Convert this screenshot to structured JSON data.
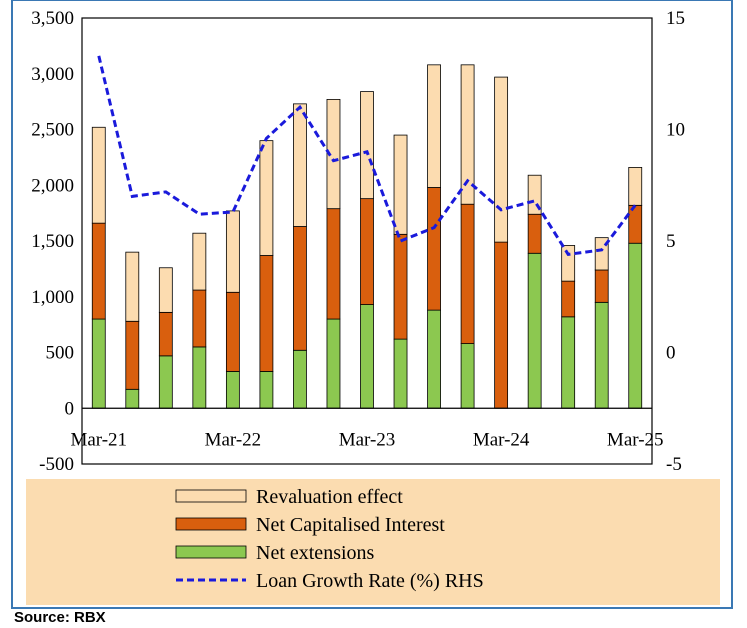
{
  "chart_data": {
    "type": "bar",
    "stacked": true,
    "title": "",
    "xlabel": "",
    "ylabel": "",
    "x_tick_labels": [
      "Mar-21",
      "Mar-22",
      "Mar-23",
      "Mar-24",
      "Mar-25"
    ],
    "categories": [
      "Mar-21",
      "Jun-21",
      "Sep-21",
      "Dec-21",
      "Mar-22",
      "Jun-22",
      "Sep-22",
      "Dec-22",
      "Mar-23",
      "Jun-23",
      "Sep-23",
      "Dec-23",
      "Mar-24",
      "Jun-24",
      "Sep-24",
      "Dec-24",
      "Mar-25"
    ],
    "ylim": [
      -500,
      3500
    ],
    "y_ticks": [
      "-500",
      "0",
      "500",
      "1,000",
      "1,500",
      "2,000",
      "2,500",
      "3,000",
      "3,500"
    ],
    "y_tick_values": [
      -500,
      0,
      500,
      1000,
      1500,
      2000,
      2500,
      3000,
      3500
    ],
    "y2lim": [
      -5,
      15
    ],
    "y2_ticks": [
      "-5",
      "0",
      "5",
      "10",
      "15"
    ],
    "y2_tick_values": [
      -5,
      0,
      5,
      10,
      15
    ],
    "series": [
      {
        "name": "Net extensions",
        "color": "#8cc850",
        "kind": "bar",
        "values": [
          800,
          170,
          470,
          550,
          330,
          330,
          520,
          800,
          930,
          620,
          880,
          580,
          0,
          1390,
          820,
          950,
          1480
        ]
      },
      {
        "name": "Net Capitalised Interest",
        "color": "#d95f0e",
        "kind": "bar",
        "values": [
          860,
          610,
          390,
          510,
          710,
          1040,
          1110,
          990,
          950,
          940,
          1100,
          1250,
          1490,
          350,
          320,
          290,
          340
        ]
      },
      {
        "name": "Revaluation effect",
        "color": "#fcdcb0",
        "kind": "bar",
        "values": [
          860,
          620,
          400,
          510,
          730,
          1030,
          1100,
          980,
          960,
          890,
          1100,
          1250,
          1480,
          350,
          320,
          290,
          340
        ]
      },
      {
        "name": "Loan Growth Rate (%) RHS",
        "color": "#1a1adb",
        "kind": "line",
        "axis": "right",
        "values": [
          13.3,
          7.0,
          7.2,
          6.2,
          6.3,
          9.6,
          11.0,
          8.6,
          9.0,
          5.0,
          5.6,
          7.7,
          6.4,
          6.8,
          4.4,
          4.6,
          6.6
        ]
      }
    ],
    "legend_order": [
      "Revaluation effect",
      "Net Capitalised Interest",
      "Net extensions",
      "Loan Growth Rate (%) RHS"
    ],
    "legend_position": "bottom"
  },
  "source_text": "Source: RBX"
}
